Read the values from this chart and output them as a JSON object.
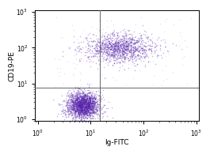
{
  "title": "",
  "xlabel": "Ig-FITC",
  "ylabel": "CD19-PE",
  "xlim_log": [
    -0.05,
    3.05
  ],
  "ylim_log": [
    -0.05,
    3.05
  ],
  "background_color": "#ffffff",
  "dot_color": "#5522aa",
  "dot_alpha": 0.35,
  "dot_size": 1.2,
  "crosshair_x_log": 1.18,
  "crosshair_y_log": 0.88,
  "n_cluster1": 2200,
  "cluster1_center_x_log": 0.85,
  "cluster1_center_y_log": 0.38,
  "cluster1_spread_x": 0.15,
  "cluster1_spread_y": 0.18,
  "n_cluster2": 1300,
  "cluster2_center_x_log": 1.55,
  "cluster2_center_y_log": 1.98,
  "cluster2_spread_x": 0.32,
  "cluster2_spread_y": 0.2,
  "scatter_dots_n": 120,
  "scatter_x_log_min": 0.3,
  "scatter_x_log_max": 2.9,
  "scatter_y_log_min": 0.9,
  "scatter_y_log_max": 2.9
}
